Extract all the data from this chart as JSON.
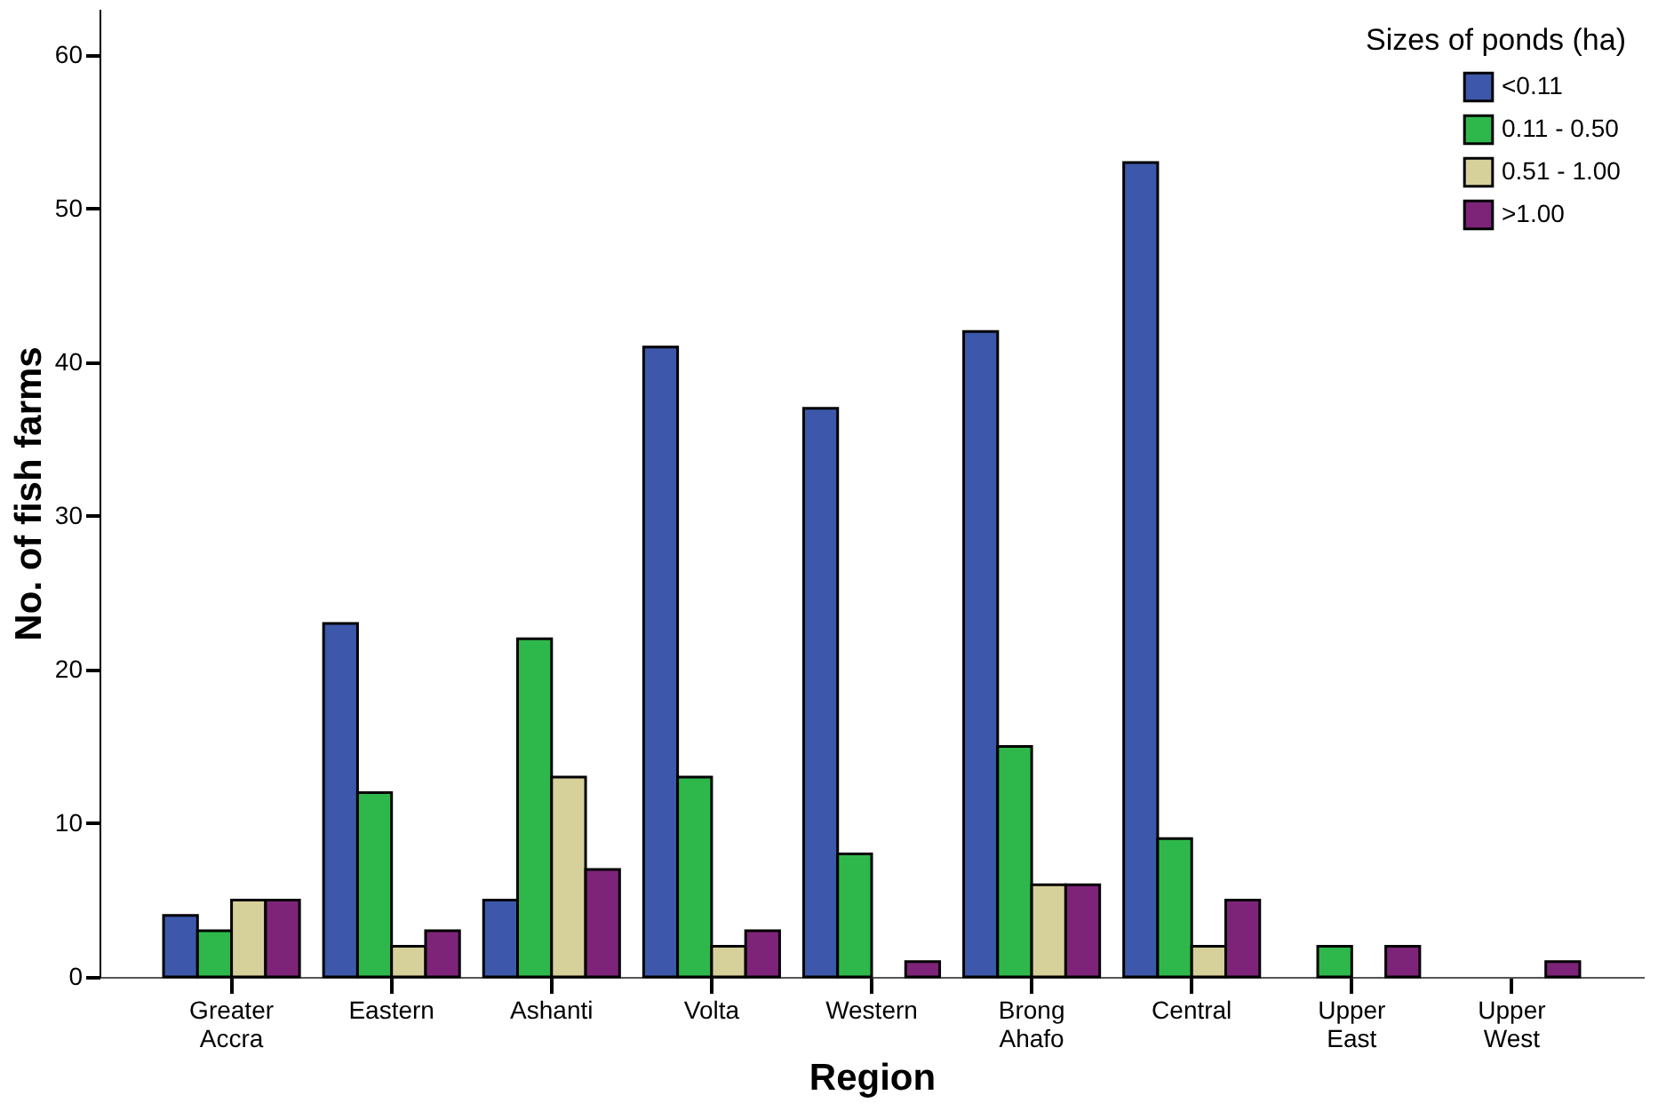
{
  "chart_data": {
    "type": "bar",
    "xlabel": "Region",
    "ylabel": "No. of fish farms",
    "legend_title": "Sizes of ponds (ha)",
    "categories": [
      "Greater\nAccra",
      "Eastern",
      "Ashanti",
      "Volta",
      "Western",
      "Brong\nAhafo",
      "Central",
      "Upper\nEast",
      "Upper\nWest"
    ],
    "series": [
      {
        "name": "<0.11",
        "color": "#3d58aa",
        "values": [
          4,
          23,
          5,
          41,
          37,
          42,
          53,
          0,
          0
        ]
      },
      {
        "name": "0.11 -  0.50",
        "color": "#2eb84b",
        "values": [
          3,
          12,
          22,
          13,
          8,
          15,
          9,
          2,
          0
        ]
      },
      {
        "name": "0.51 - 1.00",
        "color": "#d6d09a",
        "values": [
          5,
          2,
          13,
          2,
          0,
          6,
          2,
          0,
          0
        ]
      },
      {
        "name": ">1.00",
        "color": "#7d2479",
        "values": [
          5,
          3,
          7,
          3,
          1,
          6,
          5,
          2,
          1
        ]
      }
    ],
    "ylim": [
      0,
      63
    ],
    "yticks": [
      0,
      10,
      20,
      30,
      40,
      50,
      60
    ],
    "grid": false,
    "legend": "top right"
  }
}
